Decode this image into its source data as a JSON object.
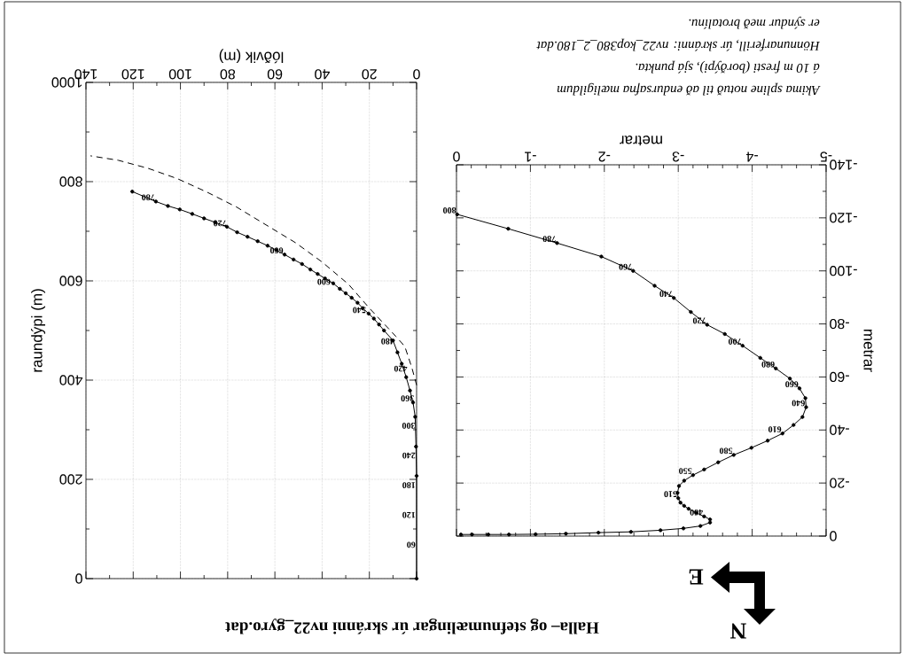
{
  "chart_data": [
    {
      "type": "line",
      "title": "Halla– og stefnumælingar úr skránni nv22_gyro.dat",
      "xlabel": "metrar",
      "ylabel": "metrar",
      "xlim": [
        0,
        -5
      ],
      "xticks": [
        -5,
        -4,
        -3,
        -2,
        -1,
        0
      ],
      "ylim": [
        0,
        -140
      ],
      "yticks": [
        -140,
        -120,
        -100,
        -80,
        -60,
        -40,
        -20,
        0
      ],
      "grid": true,
      "series": [
        {
          "color": "#000000",
          "marker": "circle",
          "line_style": "solid",
          "x": [
            -0.06,
            -0.21,
            -0.43,
            -0.71,
            -1.07,
            -1.48,
            -1.92,
            -2.36,
            -2.76,
            -3.07,
            -3.3,
            -3.43,
            -3.43,
            -3.35,
            -3.24,
            -3.14,
            -3.08,
            -3.03,
            -3.0,
            -2.99,
            -3.01,
            -3.08,
            -3.2,
            -3.35,
            -3.54,
            -3.75,
            -3.99,
            -4.21,
            -4.41,
            -4.56,
            -4.68,
            -4.73,
            -4.72,
            -4.64,
            -4.51,
            -4.32,
            -4.11,
            -3.87,
            -3.63,
            -3.39,
            -3.17,
            -2.94,
            -2.68,
            -2.39,
            -1.96,
            -1.36,
            -0.7,
            -0.01
          ],
          "values": [
            -0.6,
            -0.6,
            -0.6,
            -0.6,
            -0.7,
            -0.9,
            -1.3,
            -1.6,
            -2.2,
            -2.9,
            -3.8,
            -5.1,
            -6.3,
            -7.4,
            -8.8,
            -10.3,
            -11.4,
            -12.6,
            -14.3,
            -16.3,
            -18.9,
            -20.9,
            -23.0,
            -25.1,
            -27.8,
            -30.6,
            -33.3,
            -36.0,
            -38.7,
            -41.9,
            -44.9,
            -48.6,
            -52.0,
            -55.7,
            -59.4,
            -63.2,
            -67.2,
            -71.8,
            -76.2,
            -79.7,
            -84.5,
            -89.8,
            -94.4,
            -100,
            -105.4,
            -110.5,
            -115.9,
            -121.3
          ]
        }
      ],
      "annotations": [
        "N",
        "E",
        "Akima spline notuð til að endursafna mæligildum",
        "á 10 m fresti (borðýpi), sjá punkta.",
        "Hönnunarferill, úr skránni: nv22_kop380_2_180.dat",
        "er sýndur með brotalínu.",
        {
          "text": "460",
          "x": -3.35,
          "y": -7.4
        },
        {
          "text": "510",
          "x": -3.0,
          "y": -14.3
        },
        {
          "text": "550",
          "x": -3.2,
          "y": -23.0
        },
        {
          "text": "580",
          "x": -3.75,
          "y": -30.6
        },
        {
          "text": "610",
          "x": -4.41,
          "y": -38.7
        },
        {
          "text": "640",
          "x": -4.73,
          "y": -48.6
        },
        {
          "text": "660",
          "x": -4.64,
          "y": -55.7
        },
        {
          "text": "680",
          "x": -4.32,
          "y": -63.2
        },
        {
          "text": "700",
          "x": -3.87,
          "y": -71.8
        },
        {
          "text": "720",
          "x": -3.39,
          "y": -79.7
        },
        {
          "text": "740",
          "x": -2.94,
          "y": -89.8
        },
        {
          "text": "760",
          "x": -2.39,
          "y": -100
        },
        {
          "text": "780",
          "x": -1.36,
          "y": -110.5
        },
        {
          "text": "800",
          "x": -0.01,
          "y": -121.3
        }
      ]
    },
    {
      "type": "line",
      "xlabel": "lóðvik (m)",
      "ylabel": "raundýpi (m)",
      "xlim": [
        140,
        0
      ],
      "xticks": [
        0,
        20,
        40,
        60,
        80,
        100,
        120,
        140
      ],
      "ylim": [
        0,
        1000
      ],
      "yticks": [
        0,
        200,
        400,
        600,
        800,
        1000
      ],
      "grid": true,
      "series": [
        {
          "color": "#000000",
          "marker": "circle",
          "line_style": "solid",
          "x": [
            0,
            0,
            0.25,
            0.6,
            1.5,
            2.8,
            4.4,
            6.3,
            8.1,
            10,
            13.8,
            15.9,
            18.1,
            20.3,
            22.8,
            25,
            27.5,
            30,
            32.5,
            35.3,
            38.8,
            41.9,
            45,
            48.5,
            52.1,
            55.9,
            59.4,
            63.1,
            67.3,
            71.6,
            76,
            80.3,
            85.3,
            90,
            95,
            100.3,
            105.3,
            110.4,
            120.4
          ],
          "values": [
            0,
            207,
            266,
            326,
            355,
            379,
            406,
            433,
            456,
            480,
            500,
            512,
            524,
            534,
            545,
            556,
            566,
            575,
            584,
            595,
            605,
            614,
            623,
            634,
            643,
            653,
            662,
            671,
            680,
            689,
            698,
            709,
            718,
            726,
            735,
            744,
            751,
            760,
            780
          ]
        },
        {
          "color": "#000000",
          "marker": "none",
          "line_style": "dashed",
          "x": [
            0,
            2,
            5,
            8.75,
            20,
            28.8,
            40,
            51.3,
            63.8,
            76.3,
            88.8,
            101.3,
            113.8,
            126.3,
            138.1
          ],
          "values": [
            390,
            425,
            468,
            488,
            545,
            593,
            638,
            677,
            713,
            749,
            779,
            806,
            827,
            843,
            852
          ]
        }
      ],
      "annotations": [
        {
          "text": "60",
          "x": 0,
          "y": 60
        },
        {
          "text": "120",
          "x": 0,
          "y": 120
        },
        {
          "text": "180",
          "x": 0,
          "y": 180
        },
        {
          "text": "240",
          "x": 0,
          "y": 240
        },
        {
          "text": "300",
          "x": 0.1,
          "y": 300
        },
        {
          "text": "360",
          "x": 0.6,
          "y": 355
        },
        {
          "text": "420",
          "x": 3.5,
          "y": 415
        },
        {
          "text": "480",
          "x": 9,
          "y": 470
        },
        {
          "text": "540",
          "x": 21,
          "y": 533
        },
        {
          "text": "600",
          "x": 36,
          "y": 590
        },
        {
          "text": "660",
          "x": 56,
          "y": 653
        },
        {
          "text": "720",
          "x": 80,
          "y": 708
        },
        {
          "text": "780",
          "x": 110.4,
          "y": 760
        }
      ]
    }
  ]
}
